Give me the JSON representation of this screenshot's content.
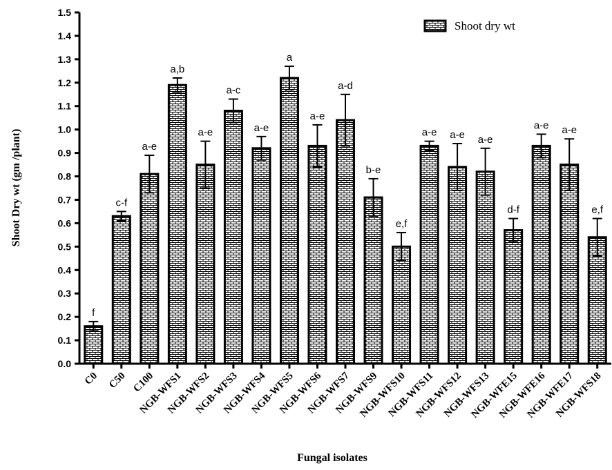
{
  "chart_data": {
    "type": "bar",
    "xlabel": "Fungal isolates",
    "ylabel": "Shoot Dry wt (gm /plant)",
    "ylim": [
      0,
      1.5
    ],
    "yticks": [
      "0.0",
      "0.1",
      "0.2",
      "0.3",
      "0.4",
      "0.5",
      "0.6",
      "0.7",
      "0.8",
      "0.9",
      "1.0",
      "1.1",
      "1.2",
      "1.3",
      "1.4",
      "1.5"
    ],
    "legend_position": "top-right",
    "grid": false,
    "categories": [
      "C0",
      "C50",
      "C100",
      "NGB-WFS1",
      "NGB-WFS2",
      "NGB-WFS3",
      "NGB-WFS4",
      "NGB-WFS5",
      "NGB-WFS6",
      "NGB-WFS7",
      "NGB-WFS9",
      "NGB-WFS10",
      "NGB-WFS11",
      "NGB-WFS12",
      "NGB-WFS13",
      "NGB-WFE15",
      "NGB-WFE16",
      "NGB-WFE17",
      "NGB-WFS18"
    ],
    "series": [
      {
        "name": "Shoot dry wt",
        "values": [
          0.16,
          0.63,
          0.81,
          1.19,
          0.85,
          1.08,
          0.92,
          1.22,
          0.93,
          1.04,
          0.71,
          0.5,
          0.93,
          0.84,
          0.82,
          0.57,
          0.93,
          0.85,
          0.54
        ],
        "error": [
          0.02,
          0.02,
          0.08,
          0.03,
          0.1,
          0.05,
          0.05,
          0.05,
          0.09,
          0.11,
          0.08,
          0.06,
          0.02,
          0.1,
          0.1,
          0.05,
          0.05,
          0.11,
          0.08
        ],
        "significance": [
          "f",
          "c-f",
          "a-e",
          "a,b",
          "a-e",
          "a-c",
          "a-e",
          "a",
          "a-e",
          "a-d",
          "b-e",
          "e,f",
          "a-e",
          "a-e",
          "a-e",
          "d-f",
          "a-e",
          "a-e",
          "e,f"
        ]
      }
    ]
  },
  "colors": {
    "bar_fill": "#ffffff",
    "bar_stroke": "#000000",
    "pattern": "#000000"
  }
}
